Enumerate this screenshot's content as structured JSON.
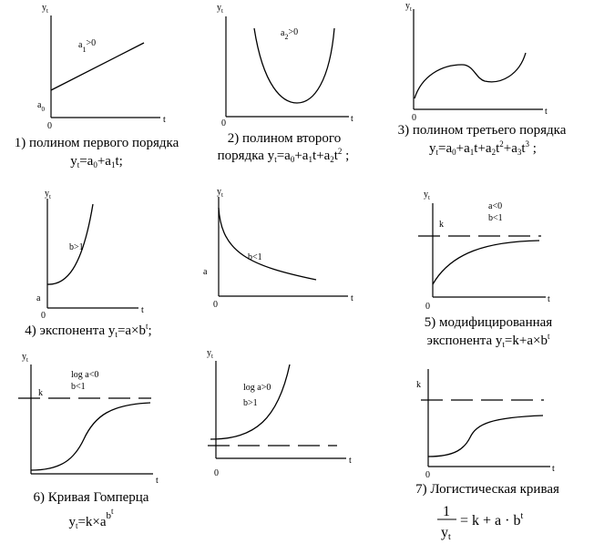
{
  "panels": [
    {
      "y_axis": "y",
      "y_sub": "t",
      "x_axis": "t",
      "origin": "0",
      "intercept": "a",
      "intercept_sub": "0",
      "note_main": "a",
      "note_sub": "1",
      "note_tail": ">0",
      "caption_1": "1) полином первого порядка",
      "caption_2_parts": [
        "y",
        "t",
        "=a",
        "0",
        "+a",
        "1",
        "t;"
      ]
    },
    {
      "y_axis": "y",
      "y_sub": "t",
      "x_axis": "t",
      "origin": "0",
      "note_main": "a",
      "note_sub": "2",
      "note_tail": ">0",
      "caption_1": "2) полином второго",
      "caption_2_parts": [
        "порядка y",
        "t",
        "=a",
        "0",
        "+a",
        "1",
        "t+a",
        "2",
        "t",
        "2",
        " ;"
      ]
    },
    {
      "y_axis": "y",
      "y_sub": "t",
      "x_axis": "t",
      "origin": "0",
      "caption_1": "3) полином третьего порядка",
      "caption_2_parts": [
        "y",
        "t",
        "=a",
        "0",
        "+a",
        "1",
        "t+a",
        "2",
        "t",
        "2",
        "+a",
        "3",
        "t",
        "3",
        " ;"
      ]
    },
    {
      "y_axis": "y",
      "y_sub": "t",
      "x_axis": "t",
      "origin": "0",
      "intercept": "a",
      "note_1": "b>1",
      "caption_parts": [
        "4) экспонента y",
        "t",
        "=a×b",
        "t",
        ";"
      ]
    },
    {
      "y_axis": "y",
      "y_sub": "t",
      "x_axis": "t",
      "origin": "0",
      "intercept": "a",
      "note_1": "b<1"
    },
    {
      "y_axis": "y",
      "y_sub": "t",
      "x_axis": "t",
      "origin": "0",
      "asymptote": "k",
      "note_1": "a<0",
      "note_2": "b<1",
      "caption_1": "5) модифицированная",
      "caption_2_parts": [
        "экспонента y",
        "t",
        "=k+a×b",
        "t"
      ]
    },
    {
      "y_axis": "y",
      "y_sub": "t",
      "x_axis": "t",
      "asymptote": "k",
      "note_1": "log a<0",
      "note_2": "b<1",
      "caption_1": "6) Кривая Гомперца",
      "caption_2_parts": [
        "y",
        "t",
        "=k×a",
        "b",
        "t"
      ]
    },
    {
      "y_axis": "y",
      "y_sub": "t",
      "x_axis": "t",
      "origin": "0",
      "note_1": "log a>0",
      "note_2": "b>1"
    },
    {
      "y_axis": "y",
      "y_sub": "t",
      "x_axis": "t",
      "origin": "0",
      "asymptote": "k",
      "caption_1": "7) Логистическая кривая",
      "formula": {
        "numerator": "1",
        "denominator": "y",
        "denominator_sub": "t",
        "rhs": "= k + a · b",
        "rhs_sup": "t"
      }
    }
  ]
}
